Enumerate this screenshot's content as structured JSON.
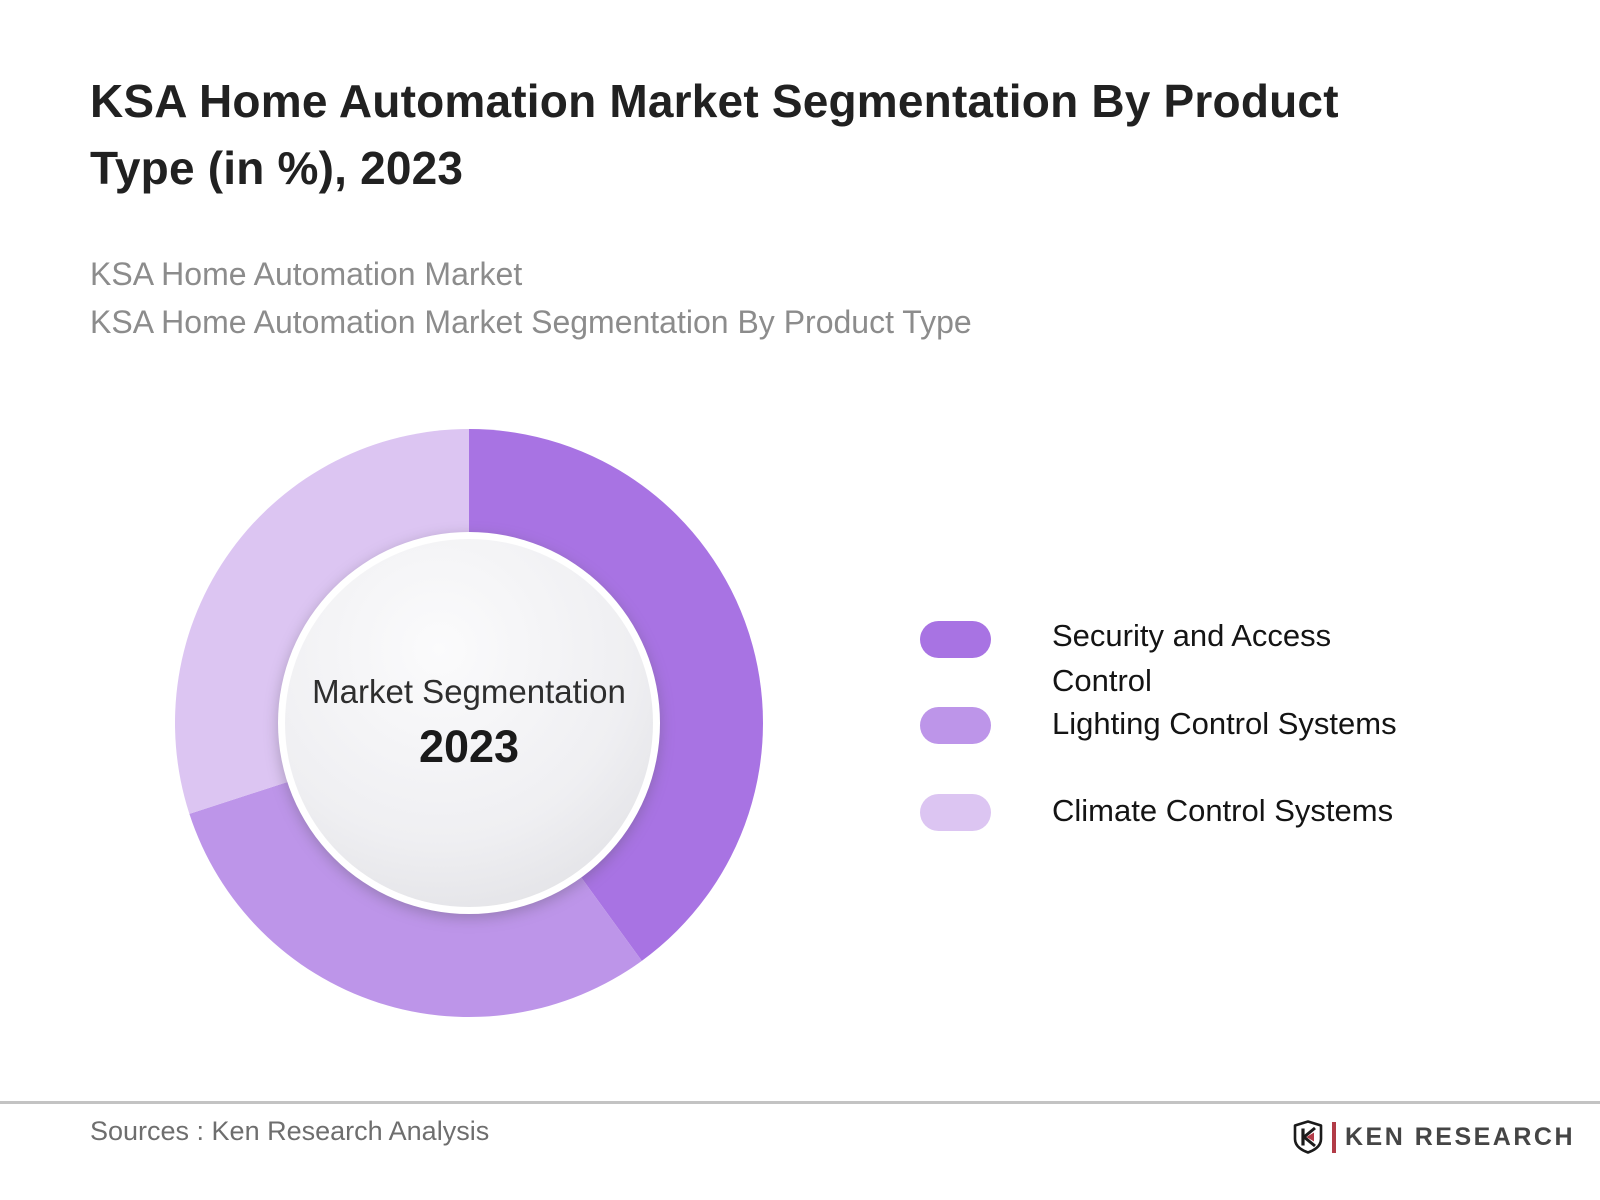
{
  "header": {
    "title_line1": "KSA Home Automation Market Segmentation By Product",
    "title_line2": "Type (in %), 2023",
    "subtitle_line1": "KSA Home Automation Market",
    "subtitle_line2": "KSA Home Automation Market Segmentation By Product Type"
  },
  "chart_data": {
    "type": "pie",
    "variant": "donut",
    "title": "KSA Home Automation Market Segmentation By Product Type (in %), 2023",
    "center_label": "Market Segmentation",
    "center_year": "2023",
    "labels": [
      "Security and Access Control",
      "Lighting Control Systems",
      "Climate Control Systems"
    ],
    "values": [
      40,
      30,
      30
    ],
    "unit": "%",
    "colors": [
      "#A873E3",
      "#BD95E9",
      "#DCC5F2"
    ],
    "start_angle_deg": 0,
    "direction": "clockwise",
    "legend_position": "right",
    "hole_fill": "#EDEDF0"
  },
  "footer": {
    "sources_text": "Sources : Ken Research Analysis",
    "brand_name": "KEN RESEARCH"
  }
}
